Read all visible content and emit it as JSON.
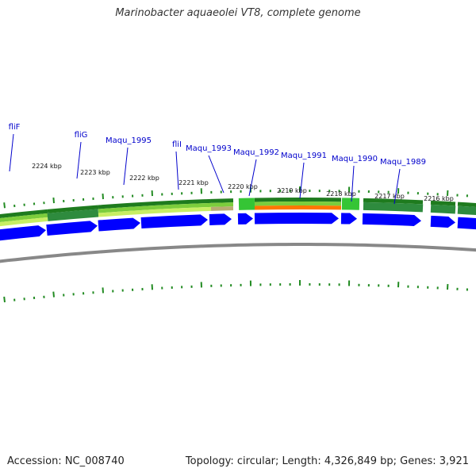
{
  "title": "Marinobacter aquaeolei VT8, complete genome",
  "footer": {
    "accession": "Accession: NC_008740",
    "summary": "Topology: circular; Length: 4,326,849 bp; Genes: 3,921"
  },
  "colors": {
    "cds_arrow": "#0000ff",
    "gene_label": "#0000cc",
    "tick": "#228b22",
    "backbone": "#888888"
  },
  "scale_labels": [
    {
      "label": "2224 kbp",
      "kbp": 2224
    },
    {
      "label": "2223 kbp",
      "kbp": 2223
    },
    {
      "label": "2222 kbp",
      "kbp": 2222
    },
    {
      "label": "2221 kbp",
      "kbp": 2221
    },
    {
      "label": "2220 kbp",
      "kbp": 2220
    },
    {
      "label": "2219 kbp",
      "kbp": 2219
    },
    {
      "label": "2218 kbp",
      "kbp": 2218
    },
    {
      "label": "2217 kbp",
      "kbp": 2217
    },
    {
      "label": "2216 kbp",
      "kbp": 2216
    }
  ],
  "genes": [
    {
      "name": "fliF"
    },
    {
      "name": "fliG"
    },
    {
      "name": "Maqu_1995"
    },
    {
      "name": "fliI"
    },
    {
      "name": "Maqu_1993"
    },
    {
      "name": "Maqu_1992"
    },
    {
      "name": "Maqu_1991"
    },
    {
      "name": "Maqu_1990"
    },
    {
      "name": "Maqu_1989"
    }
  ]
}
